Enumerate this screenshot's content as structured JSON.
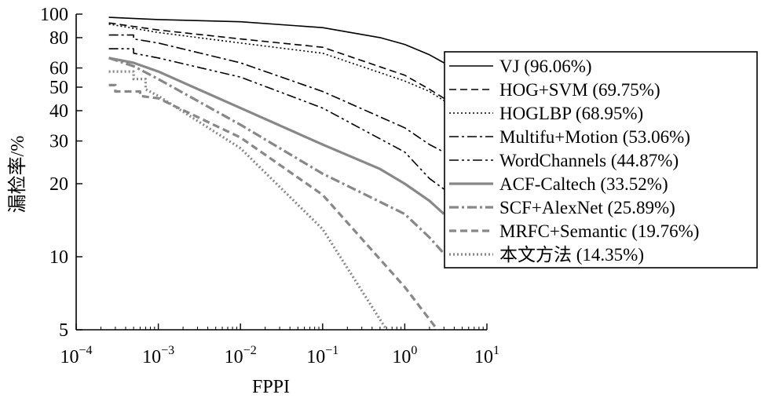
{
  "chart_data": {
    "type": "line",
    "title": "",
    "xlabel": "FPPI",
    "ylabel": "漏检率/%",
    "x_scale": "log",
    "y_scale": "log",
    "xlim": [
      0.0001,
      10
    ],
    "ylim": [
      5,
      100
    ],
    "x_ticks": [
      {
        "value": 0.0001,
        "base": "10",
        "exp": "−4"
      },
      {
        "value": 0.001,
        "base": "10",
        "exp": "−3"
      },
      {
        "value": 0.01,
        "base": "10",
        "exp": "−2"
      },
      {
        "value": 0.1,
        "base": "10",
        "exp": "−1"
      },
      {
        "value": 1,
        "base": "10",
        "exp": "0"
      },
      {
        "value": 10,
        "base": "10",
        "exp": "1"
      }
    ],
    "y_ticks": [
      {
        "value": 100,
        "label": "100"
      },
      {
        "value": 80,
        "label": "80"
      },
      {
        "value": 60,
        "label": "60"
      },
      {
        "value": 50,
        "label": "50"
      },
      {
        "value": 40,
        "label": "40"
      },
      {
        "value": 30,
        "label": "30"
      },
      {
        "value": 20,
        "label": "20"
      },
      {
        "value": 10,
        "label": "10"
      },
      {
        "value": 5,
        "label": "5"
      }
    ],
    "grid": false,
    "legend_position": "right",
    "series": [
      {
        "name": "VJ (96.06%)",
        "color": "#000000",
        "dash": "solid",
        "x": [
          0.00025,
          0.001,
          0.01,
          0.1,
          0.5,
          1,
          2,
          3
        ],
        "y": [
          97,
          95,
          93,
          88,
          80,
          75,
          68,
          63
        ]
      },
      {
        "name": "HOG+SVM (69.75%)",
        "color": "#000000",
        "dash": "dashed",
        "x": [
          0.00025,
          0.001,
          0.01,
          0.1,
          1,
          2,
          3
        ],
        "y": [
          92,
          86,
          79,
          73,
          56,
          49,
          45
        ]
      },
      {
        "name": "HOGLBP (68.95%)",
        "color": "#000000",
        "dash": "dotted",
        "x": [
          0.00025,
          0.001,
          0.01,
          0.1,
          1,
          2,
          3
        ],
        "y": [
          91,
          84,
          76,
          69,
          53,
          48,
          44
        ]
      },
      {
        "name": "Multifu+Motion (53.06%)",
        "color": "#000000",
        "dash": "dashdot",
        "x": [
          0.00025,
          0.0005,
          0.0005,
          0.001,
          0.01,
          0.1,
          1,
          2,
          3
        ],
        "y": [
          82,
          82,
          79,
          76,
          63,
          48,
          34,
          29,
          27
        ]
      },
      {
        "name": "WordChannels (44.87%)",
        "color": "#000000",
        "dash": "dashdotdot",
        "x": [
          0.00025,
          0.0005,
          0.0005,
          0.001,
          0.01,
          0.1,
          1,
          2,
          3
        ],
        "y": [
          72,
          72,
          69,
          66,
          55,
          41,
          27,
          21,
          19
        ]
      },
      {
        "name": "ACF-Caltech (33.52%)",
        "color": "#888888",
        "dash": "solid",
        "x": [
          0.00025,
          0.0005,
          0.001,
          0.01,
          0.1,
          0.5,
          1,
          2,
          3
        ],
        "y": [
          66,
          63,
          58,
          41,
          29,
          23,
          20,
          17,
          15
        ]
      },
      {
        "name": "SCF+AlexNet (25.89%)",
        "color": "#888888",
        "dash": "dashdot",
        "x": [
          0.00025,
          0.0005,
          0.001,
          0.01,
          0.1,
          1,
          2,
          3
        ],
        "y": [
          66,
          61,
          54,
          35,
          22,
          15,
          12,
          10.3
        ]
      },
      {
        "name": "MRFC+Semantic (19.76%)",
        "color": "#888888",
        "dash": "dashed",
        "x": [
          0.00025,
          0.0003,
          0.0003,
          0.0006,
          0.0006,
          0.001,
          0.01,
          0.1,
          1,
          2.5
        ],
        "y": [
          51,
          51,
          48,
          48,
          46,
          45,
          31,
          18,
          7.5,
          5
        ]
      },
      {
        "name": "本文方法 (14.35%)",
        "color": "#888888",
        "dash": "dotted",
        "x": [
          0.00025,
          0.0005,
          0.0005,
          0.0007,
          0.0007,
          0.001,
          0.01,
          0.1,
          0.6
        ],
        "y": [
          58,
          58,
          54,
          54,
          49,
          46,
          28,
          13,
          5
        ]
      }
    ]
  }
}
